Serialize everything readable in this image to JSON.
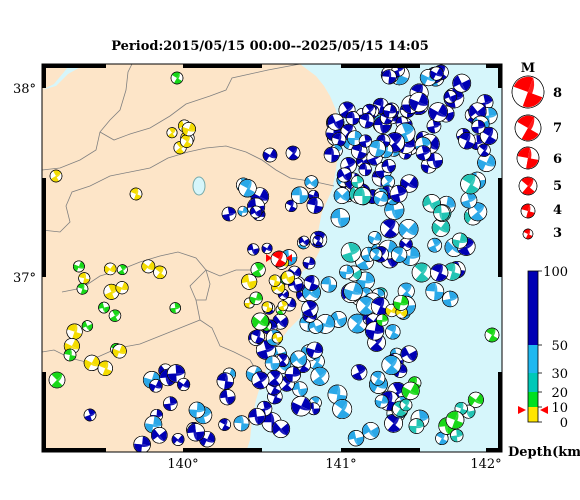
{
  "title": "Period:2015/05/15 00:00--2025/05/15 14:05",
  "map": {
    "lat_labels": [
      "38°",
      "37°"
    ],
    "lon_labels": [
      "140°",
      "141°",
      "142°"
    ],
    "colors": {
      "land": "#fde5c8",
      "sea": "#d6f6fb",
      "border": "#808080"
    }
  },
  "magnitude_legend": {
    "title": "M",
    "entries": [
      "8",
      "7",
      "6",
      "5",
      "4",
      "3"
    ],
    "color": "#ff0000"
  },
  "depth_scale": {
    "label": "Depth(km)",
    "ticks": [
      "100",
      "50",
      "30",
      "20",
      "10",
      "0"
    ],
    "colors": [
      "#0000b4",
      "#1fb8f0",
      "#00c8b8",
      "#00e020",
      "#ffe600"
    ],
    "marker_color": "#ff0000"
  },
  "mechanism_colors": {
    "deep": "#0000b4",
    "intermediate": "#2aa8e8",
    "mid": "#22c4b4",
    "shallow_green": "#18d818",
    "shallow": "#f4dc00",
    "highlight": "#ff0000"
  }
}
